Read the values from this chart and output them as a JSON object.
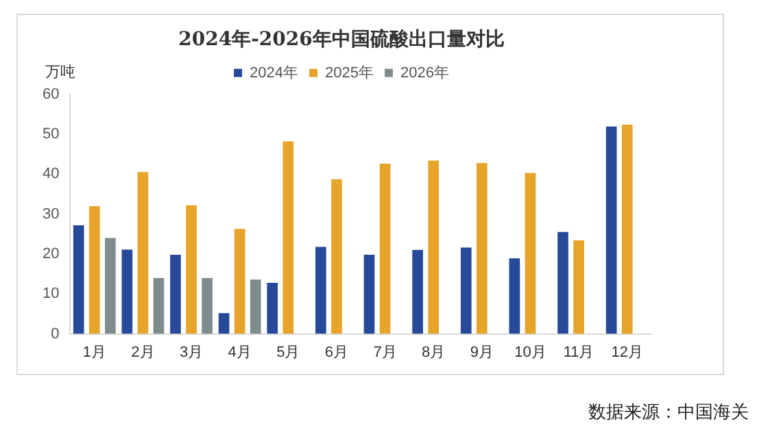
{
  "chart_data": {
    "type": "bar",
    "title": "2024年-2026年中国硫酸出口量对比",
    "ylabel": "万吨",
    "categories": [
      "1月",
      "2月",
      "3月",
      "4月",
      "5月",
      "6月",
      "7月",
      "8月",
      "9月",
      "10月",
      "11月",
      "12月"
    ],
    "series": [
      {
        "name": "2024年",
        "color": "#264a99",
        "values": [
          27.2,
          21.1,
          19.8,
          5.2,
          12.8,
          21.8,
          19.8,
          21.0,
          21.6,
          18.9,
          25.5,
          51.9
        ]
      },
      {
        "name": "2025年",
        "color": "#e6a52a",
        "values": [
          32.0,
          40.5,
          32.2,
          26.3,
          48.2,
          38.7,
          42.6,
          43.4,
          42.8,
          40.3,
          23.4,
          52.4
        ]
      },
      {
        "name": "2026年",
        "color": "#7f8c8d",
        "values": [
          24.0,
          14.0,
          14.0,
          13.6,
          null,
          null,
          null,
          null,
          null,
          null,
          null,
          null
        ]
      }
    ],
    "ylim": [
      0,
      60
    ],
    "yticks": [
      0,
      10,
      20,
      30,
      40,
      50,
      60
    ],
    "grid": false,
    "legend": "top",
    "annotations": [
      "数据来源：中国海关"
    ]
  }
}
